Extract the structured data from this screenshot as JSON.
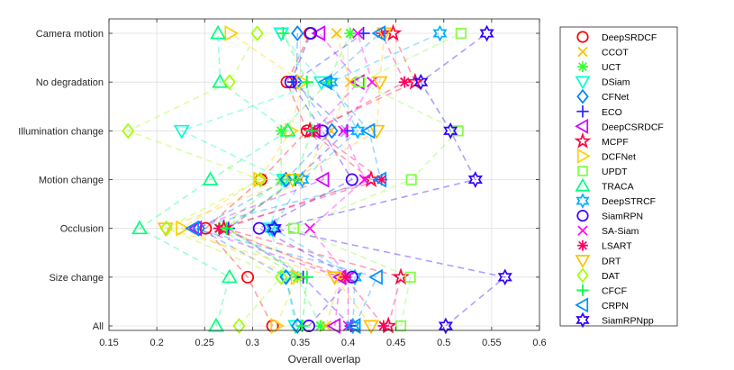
{
  "chart_data": {
    "type": "scatter",
    "title": "",
    "xlabel": "Overall overlap",
    "ylabel": "",
    "xlim": [
      0.15,
      0.6
    ],
    "xticks": [
      "0.15",
      "0.2",
      "0.25",
      "0.3",
      "0.35",
      "0.4",
      "0.45",
      "0.5",
      "0.55",
      "0.6"
    ],
    "categories": [
      "All",
      "Size change",
      "Occlusion",
      "Motion change",
      "Illumination change",
      "No degradation",
      "Camera motion"
    ],
    "grid": true,
    "legend_position": "outside-right",
    "connect_series_with_dashed_lines": true,
    "series": [
      {
        "name": "DeepSRDCF",
        "color": "#ff0000",
        "marker": "circle",
        "values": [
          0.321,
          0.295,
          0.251,
          0.309,
          0.357,
          0.336,
          0.36
        ]
      },
      {
        "name": "CCOT",
        "color": "#ffc000",
        "marker": "x",
        "values": [
          0.377,
          0.391,
          0.27,
          0.35,
          0.382,
          0.402,
          0.388
        ]
      },
      {
        "name": "UCT",
        "color": "#33ff33",
        "marker": "asterisk",
        "values": [
          0.371,
          0.347,
          0.266,
          0.33,
          0.33,
          0.379,
          0.402
        ]
      },
      {
        "name": "DSiam",
        "color": "#00ffd0",
        "marker": "triangle-down",
        "values": [
          0.345,
          0.335,
          0.318,
          0.333,
          0.226,
          0.372,
          0.33
        ]
      },
      {
        "name": "CFNet",
        "color": "#0080ff",
        "marker": "diamond",
        "values": [
          0.347,
          0.335,
          0.244,
          0.335,
          0.383,
          0.346,
          0.347
        ]
      },
      {
        "name": "ECO",
        "color": "#3020ff",
        "marker": "plus",
        "values": [
          0.403,
          0.353,
          0.275,
          0.345,
          0.399,
          0.343,
          0.416
        ]
      },
      {
        "name": "DeepCSRDCF",
        "color": "#d000ff",
        "marker": "triangle-left",
        "values": [
          0.386,
          0.392,
          0.241,
          0.374,
          0.365,
          0.411,
          0.37
        ]
      },
      {
        "name": "MCPF",
        "color": "#ff0040",
        "marker": "pentagram",
        "values": [
          0.442,
          0.455,
          0.27,
          0.424,
          0.36,
          0.47,
          0.447
        ]
      },
      {
        "name": "DCFNet",
        "color": "#ffd000",
        "marker": "triangle-right",
        "values": [
          0.325,
          0.346,
          0.226,
          0.307,
          0.34,
          0.352,
          0.277
        ]
      },
      {
        "name": "UPDT",
        "color": "#80ff40",
        "marker": "square",
        "values": [
          0.455,
          0.465,
          0.343,
          0.466,
          0.515,
          0.412,
          0.518
        ]
      },
      {
        "name": "TRACA",
        "color": "#00ff80",
        "marker": "triangle-up",
        "values": [
          0.262,
          0.276,
          0.182,
          0.256,
          0.337,
          0.266,
          0.264
        ]
      },
      {
        "name": "DeepSTRCF",
        "color": "#00b0ff",
        "marker": "hexagram",
        "values": [
          0.405,
          0.407,
          0.321,
          0.352,
          0.41,
          0.382,
          0.496
        ]
      },
      {
        "name": "SiamRPN",
        "color": "#4000ff",
        "marker": "circle",
        "values": [
          0.359,
          0.404,
          0.307,
          0.404,
          0.373,
          0.34,
          0.361
        ]
      },
      {
        "name": "SA-Siam",
        "color": "#ff00ff",
        "marker": "x",
        "values": [
          0.4,
          0.4,
          0.36,
          0.417,
          0.395,
          0.425,
          0.41
        ]
      },
      {
        "name": "LSART",
        "color": "#ff0060",
        "marker": "asterisk",
        "values": [
          0.437,
          0.397,
          0.265,
          0.435,
          0.365,
          0.459,
          0.435
        ]
      },
      {
        "name": "DRT",
        "color": "#ffc000",
        "marker": "triangle-down",
        "values": [
          0.424,
          0.386,
          0.209,
          0.342,
          0.43,
          0.433,
          0.438
        ]
      },
      {
        "name": "DAT",
        "color": "#a0ff00",
        "marker": "diamond",
        "values": [
          0.286,
          0.33,
          0.21,
          0.308,
          0.17,
          0.276,
          0.305
        ]
      },
      {
        "name": "CFCF",
        "color": "#00ff40",
        "marker": "plus",
        "values": [
          0.352,
          0.357,
          0.273,
          0.344,
          0.362,
          0.357,
          0.332
        ]
      },
      {
        "name": "CRPN",
        "color": "#0090ff",
        "marker": "triangle-left",
        "values": [
          0.407,
          0.43,
          0.238,
          0.434,
          0.422,
          0.377,
          0.433
        ]
      },
      {
        "name": "SiamRPNpp",
        "color": "#3000ff",
        "marker": "hexagram",
        "values": [
          0.502,
          0.564,
          0.323,
          0.533,
          0.507,
          0.476,
          0.545
        ]
      }
    ]
  }
}
